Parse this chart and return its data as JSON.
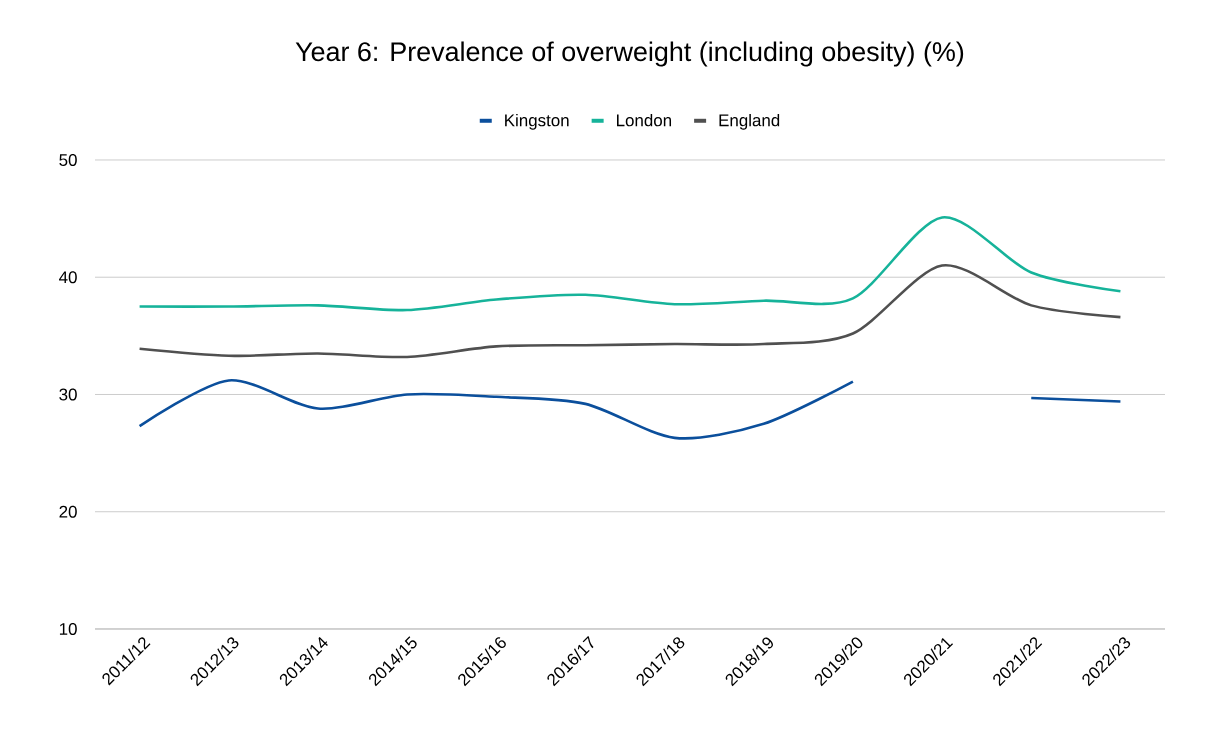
{
  "chart_data": {
    "type": "line",
    "title": "Year 6: Prevalence of overweight (including obesity) (%)",
    "categories": [
      "2011/12",
      "2012/13",
      "2013/14",
      "2014/15",
      "2015/16",
      "2016/17",
      "2017/18",
      "2018/19",
      "2019/20",
      "2020/21",
      "2021/22",
      "2022/23"
    ],
    "series": [
      {
        "name": "Kingston",
        "color": "#0b4f9c",
        "values": [
          27.3,
          31.2,
          28.8,
          30.0,
          29.8,
          29.2,
          26.3,
          27.5,
          31.1,
          null,
          29.7,
          29.4
        ]
      },
      {
        "name": "London",
        "color": "#16b39a",
        "values": [
          37.5,
          37.5,
          37.6,
          37.2,
          38.1,
          38.5,
          37.7,
          38.0,
          38.2,
          45.1,
          40.4,
          38.8
        ]
      },
      {
        "name": "England",
        "color": "#505050",
        "values": [
          33.9,
          33.3,
          33.5,
          33.2,
          34.1,
          34.2,
          34.3,
          34.3,
          35.2,
          41.0,
          37.6,
          36.6
        ]
      }
    ],
    "ylim": [
      10,
      50
    ],
    "yticks": [
      10,
      20,
      30,
      40,
      50
    ],
    "grid": "y",
    "legend": "top",
    "marker": "none",
    "line_style": "solid"
  }
}
